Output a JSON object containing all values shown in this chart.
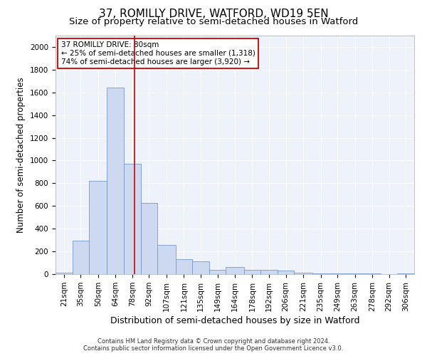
{
  "title": "37, ROMILLY DRIVE, WATFORD, WD19 5EN",
  "subtitle": "Size of property relative to semi-detached houses in Watford",
  "xlabel": "Distribution of semi-detached houses by size in Watford",
  "ylabel": "Number of semi-detached properties",
  "footnote1": "Contains HM Land Registry data © Crown copyright and database right 2024.",
  "footnote2": "Contains public sector information licensed under the Open Government Licence v3.0.",
  "annotation_line1": "37 ROMILLY DRIVE: 80sqm",
  "annotation_line2": "← 25% of semi-detached houses are smaller (1,318)",
  "annotation_line3": "74% of semi-detached houses are larger (3,920) →",
  "bar_color": "#ccd9f0",
  "bar_edge_color": "#7799cc",
  "vline_color": "#cc0000",
  "annotation_box_edge": "#cc0000",
  "categories": [
    "21sqm",
    "35sqm",
    "50sqm",
    "64sqm",
    "78sqm",
    "92sqm",
    "107sqm",
    "121sqm",
    "135sqm",
    "149sqm",
    "164sqm",
    "178sqm",
    "192sqm",
    "206sqm",
    "221sqm",
    "235sqm",
    "249sqm",
    "263sqm",
    "278sqm",
    "292sqm",
    "306sqm"
  ],
  "bin_edges": [
    14,
    28,
    42,
    57,
    71,
    85,
    99,
    114,
    128,
    142,
    156,
    171,
    185,
    199,
    213,
    228,
    242,
    256,
    271,
    285,
    299,
    313
  ],
  "values": [
    10,
    295,
    820,
    1640,
    970,
    625,
    255,
    130,
    110,
    40,
    65,
    35,
    35,
    30,
    10,
    5,
    5,
    5,
    5,
    0,
    5
  ],
  "ylim": [
    0,
    2100
  ],
  "yticks": [
    0,
    200,
    400,
    600,
    800,
    1000,
    1200,
    1400,
    1600,
    1800,
    2000
  ],
  "background_color": "#edf2fb",
  "vline_x": 80,
  "title_fontsize": 11,
  "subtitle_fontsize": 9.5,
  "axis_label_fontsize": 8.5,
  "tick_fontsize": 7.5,
  "annotation_fontsize": 7.5
}
